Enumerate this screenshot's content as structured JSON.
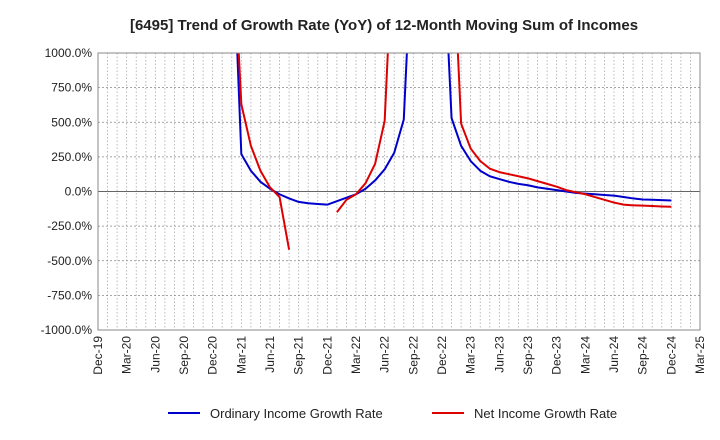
{
  "chart_data": {
    "type": "line",
    "title": "[6495]  Trend of Growth Rate (YoY) of 12-Month Moving Sum of Incomes",
    "xlabel": "",
    "ylabel": "",
    "ylim": [
      -1000,
      1000
    ],
    "y_ticks": [
      "1000.0%",
      "750.0%",
      "500.0%",
      "250.0%",
      "0.0%",
      "-250.0%",
      "-500.0%",
      "-750.0%",
      "-1000.0%"
    ],
    "x_ticks": [
      "Dec-19",
      "Mar-20",
      "Jun-20",
      "Sep-20",
      "Dec-20",
      "Mar-21",
      "Jun-21",
      "Sep-21",
      "Dec-21",
      "Mar-22",
      "Jun-22",
      "Sep-22",
      "Dec-22",
      "Mar-23",
      "Jun-23",
      "Sep-23",
      "Dec-23",
      "Mar-24",
      "Jun-24",
      "Sep-24",
      "Dec-24",
      "Mar-25"
    ],
    "grid": true,
    "legend_position": "bottom",
    "series": [
      {
        "name": "Ordinary Income Growth Rate",
        "color": "#0000cc",
        "points": [
          [
            "Feb-21",
            2000
          ],
          [
            "Mar-21",
            270
          ],
          [
            "Apr-21",
            150
          ],
          [
            "May-21",
            70
          ],
          [
            "Jun-21",
            20
          ],
          [
            "Jul-21",
            -20
          ],
          [
            "Aug-21",
            -50
          ],
          [
            "Sep-21",
            -75
          ],
          [
            "Oct-21",
            -85
          ],
          [
            "Nov-21",
            -90
          ],
          [
            "Dec-21",
            -95
          ],
          [
            "Jan-22",
            -70
          ],
          [
            "Feb-22",
            -45
          ],
          [
            "Mar-22",
            -20
          ],
          [
            "Apr-22",
            20
          ],
          [
            "May-22",
            80
          ],
          [
            "Jun-22",
            160
          ],
          [
            "Jul-22",
            280
          ],
          [
            "Aug-22",
            520
          ],
          [
            "Sep-22",
            2000
          ],
          null,
          [
            "Dec-22",
            2000
          ],
          [
            "Jan-23",
            530
          ],
          [
            "Feb-23",
            330
          ],
          [
            "Mar-23",
            220
          ],
          [
            "Apr-23",
            150
          ],
          [
            "May-23",
            110
          ],
          [
            "Jun-23",
            90
          ],
          [
            "Jul-23",
            70
          ],
          [
            "Aug-23",
            55
          ],
          [
            "Sep-23",
            45
          ],
          [
            "Oct-23",
            30
          ],
          [
            "Nov-23",
            20
          ],
          [
            "Dec-23",
            10
          ],
          [
            "Jan-24",
            0
          ],
          [
            "Feb-24",
            -10
          ],
          [
            "Mar-24",
            -15
          ],
          [
            "Apr-24",
            -20
          ],
          [
            "May-24",
            -25
          ],
          [
            "Jun-24",
            -30
          ],
          [
            "Jul-24",
            -40
          ],
          [
            "Aug-24",
            -50
          ],
          [
            "Sep-24",
            -58
          ],
          [
            "Oct-24",
            -60
          ],
          [
            "Nov-24",
            -62
          ],
          [
            "Dec-24",
            -65
          ]
        ]
      },
      {
        "name": "Net Income Growth Rate",
        "color": "#dd0000",
        "points": [
          [
            "Feb-21",
            2000
          ],
          [
            "Mar-21",
            630
          ],
          [
            "Apr-21",
            330
          ],
          [
            "May-21",
            150
          ],
          [
            "Jun-21",
            30
          ],
          [
            "Jul-21",
            -40
          ],
          [
            "Aug-21",
            -420
          ],
          null,
          [
            "Jan-22",
            -150
          ],
          [
            "Feb-22",
            -60
          ],
          [
            "Mar-22",
            -20
          ],
          [
            "Apr-22",
            60
          ],
          [
            "May-22",
            200
          ],
          [
            "Jun-22",
            510
          ],
          [
            "Jul-22",
            2000
          ],
          null,
          [
            "Jan-23",
            2000
          ],
          [
            "Feb-23",
            490
          ],
          [
            "Mar-23",
            310
          ],
          [
            "Apr-23",
            220
          ],
          [
            "May-23",
            165
          ],
          [
            "Jun-23",
            140
          ],
          [
            "Jul-23",
            125
          ],
          [
            "Aug-23",
            110
          ],
          [
            "Sep-23",
            95
          ],
          [
            "Oct-23",
            75
          ],
          [
            "Nov-23",
            55
          ],
          [
            "Dec-23",
            35
          ],
          [
            "Jan-24",
            10
          ],
          [
            "Feb-24",
            -5
          ],
          [
            "Mar-24",
            -20
          ],
          [
            "Apr-24",
            -40
          ],
          [
            "May-24",
            -60
          ],
          [
            "Jun-24",
            -80
          ],
          [
            "Jul-24",
            -95
          ],
          [
            "Aug-24",
            -100
          ],
          [
            "Sep-24",
            -102
          ],
          [
            "Oct-24",
            -105
          ],
          [
            "Nov-24",
            -108
          ],
          [
            "Dec-24",
            -110
          ]
        ]
      }
    ]
  }
}
